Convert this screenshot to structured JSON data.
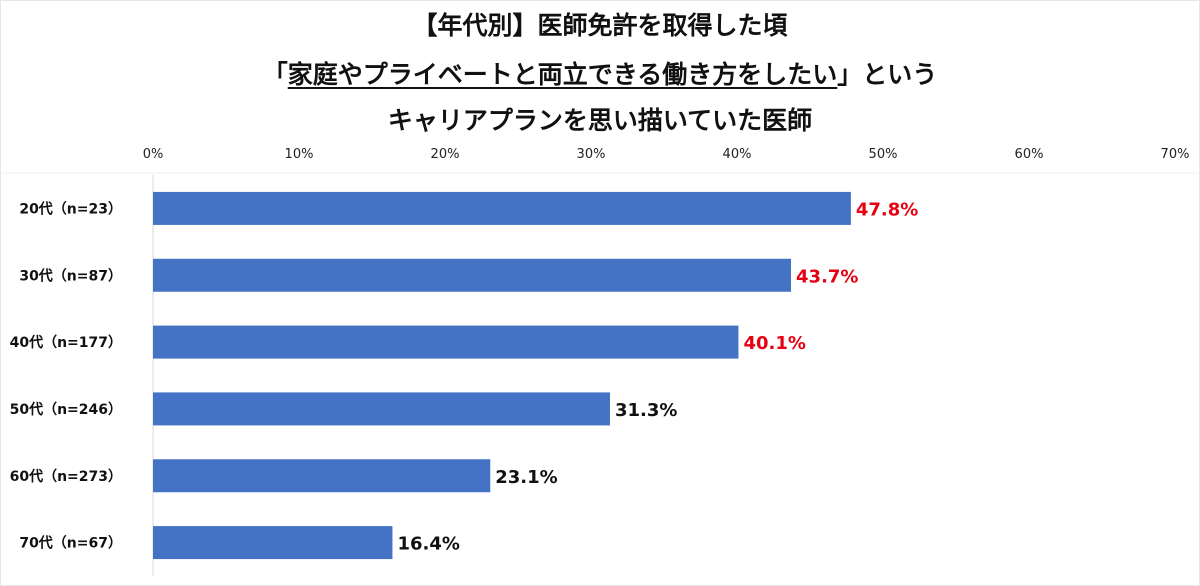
{
  "chart_data": {
    "type": "bar",
    "orientation": "horizontal",
    "title": {
      "line1": "【年代別】医師免許を取得した頃",
      "line2_prefix": "「",
      "line2_underlined": "家庭やプライベートと両立できる働き方をしたい",
      "line2_suffix": "」という",
      "line3": "キャリアプランを思い描いていた医師"
    },
    "categories": [
      "20代（n=23）",
      "30代（n=87）",
      "40代（n=177）",
      "50代（n=246）",
      "60代（n=273）",
      "70代（n=67）"
    ],
    "values": [
      47.8,
      43.7,
      40.1,
      31.3,
      23.1,
      16.4
    ],
    "data_labels": [
      "47.8%",
      "43.7%",
      "40.1%",
      "31.3%",
      "23.1%",
      "16.4%"
    ],
    "xlim": [
      0,
      70
    ],
    "x_ticks": [
      "0%",
      "10%",
      "20%",
      "30%",
      "40%",
      "50%",
      "60%",
      "70%"
    ],
    "x_axis_position": "top",
    "grid": false,
    "bar_color": "#4472C4",
    "highlight_label_color": "#E60012",
    "normal_label_color": "#111111",
    "highlighted_count": 3
  }
}
